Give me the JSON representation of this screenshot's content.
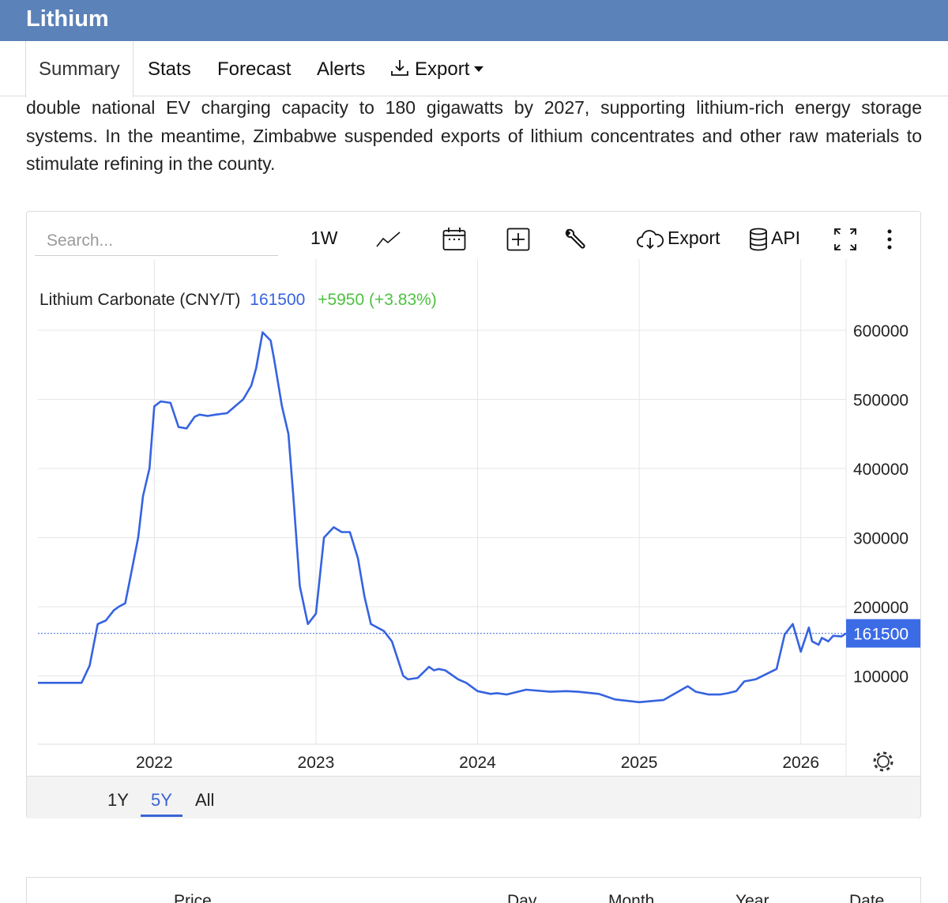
{
  "page": {
    "title": "Lithium"
  },
  "nav": {
    "tabs": [
      {
        "label": "Summary"
      },
      {
        "label": "Stats"
      },
      {
        "label": "Forecast"
      },
      {
        "label": "Alerts"
      },
      {
        "label": "Export"
      }
    ]
  },
  "article": {
    "text": "by the announcement of higher power storage spending. This was combined with Beijing stating it would double national EV charging capacity to 180 gigawatts by 2027, supporting lithium-rich energy storage systems. In the meantime, Zimbabwe suspended exports of lithium concentrates and other raw materials to stimulate refining in the county."
  },
  "toolbar": {
    "search_placeholder": "Search...",
    "interval_label": "1W",
    "export_label": "Export",
    "api_label": "API",
    "icons": [
      "line-chart-icon",
      "calendar-icon",
      "plus-box-icon",
      "wrench-icon",
      "cloud-download-icon",
      "database-icon",
      "fullscreen-icon",
      "more-vertical-icon",
      "gear-icon"
    ]
  },
  "legend": {
    "name": "Lithium Carbonate (CNY/T)",
    "price": "161500",
    "change": "+5950 (+3.83%)"
  },
  "colors": {
    "line": "#3563e0",
    "positive": "#4cc23f",
    "header": "#5b82b9",
    "price_tag": "#3c6be6"
  },
  "range_selector": {
    "options": [
      "1Y",
      "5Y",
      "All"
    ],
    "selected": "5Y"
  },
  "table_header": {
    "columns": [
      "Price",
      "Day",
      "Month",
      "Year",
      "Date"
    ]
  },
  "chart_data": {
    "type": "line",
    "title": "Lithium Carbonate (CNY/T)",
    "xlabel": "",
    "ylabel": "",
    "x_ticks": [
      "2022",
      "2023",
      "2024",
      "2025",
      "2026"
    ],
    "y_ticks": [
      "600000",
      "500000",
      "400000",
      "300000",
      "200000",
      "100000"
    ],
    "ylim": [
      0,
      600000
    ],
    "xlim": [
      2021.28,
      2026.28
    ],
    "grid": true,
    "last_value": 161500,
    "last_value_label": "161500",
    "series": [
      {
        "x": [
          2021.28,
          2021.55,
          2021.6,
          2021.65,
          2021.7,
          2021.75,
          2021.78,
          2021.82,
          2021.85,
          2021.9,
          2021.93,
          2021.97,
          2022.0,
          2022.04,
          2022.1,
          2022.15,
          2022.2,
          2022.25,
          2022.28,
          2022.33,
          2022.38,
          2022.45,
          2022.55,
          2022.6,
          2022.63,
          2022.67,
          2022.72,
          2022.74,
          2022.79,
          2022.83,
          2022.86,
          2022.9,
          2022.95,
          2023.0,
          2023.05,
          2023.11,
          2023.16,
          2023.21,
          2023.26,
          2023.3,
          2023.34,
          2023.38,
          2023.42,
          2023.47,
          2023.54,
          2023.57,
          2023.63,
          2023.7,
          2023.73,
          2023.76,
          2023.8,
          2023.88,
          2023.93,
          2024.0,
          2024.08,
          2024.12,
          2024.18,
          2024.3,
          2024.45,
          2024.55,
          2024.62,
          2024.75,
          2024.85,
          2025.0,
          2025.15,
          2025.3,
          2025.35,
          2025.43,
          2025.5,
          2025.55,
          2025.6,
          2025.65,
          2025.72,
          2025.85,
          2025.9,
          2025.95,
          2026.0,
          2026.05,
          2026.07,
          2026.11,
          2026.13,
          2026.17,
          2026.2,
          2026.25,
          2026.28
        ],
        "y": [
          90000,
          90000,
          115000,
          175000,
          180000,
          195000,
          200000,
          205000,
          240000,
          300000,
          360000,
          400000,
          490000,
          497000,
          495000,
          460000,
          458000,
          475000,
          478000,
          476000,
          478000,
          480000,
          500000,
          520000,
          545000,
          597000,
          585000,
          560000,
          490000,
          450000,
          360000,
          230000,
          175000,
          190000,
          300000,
          315000,
          308000,
          308000,
          270000,
          215000,
          175000,
          170000,
          165000,
          150000,
          100000,
          95000,
          97000,
          113000,
          108000,
          110000,
          108000,
          95000,
          90000,
          78000,
          74000,
          75000,
          73000,
          80000,
          77000,
          78000,
          77000,
          74000,
          66000,
          62000,
          65000,
          85000,
          77000,
          73000,
          73000,
          75000,
          78000,
          92000,
          95000,
          110000,
          160000,
          175000,
          135000,
          170000,
          150000,
          145000,
          155000,
          150000,
          158000,
          157000,
          161500
        ]
      }
    ]
  }
}
